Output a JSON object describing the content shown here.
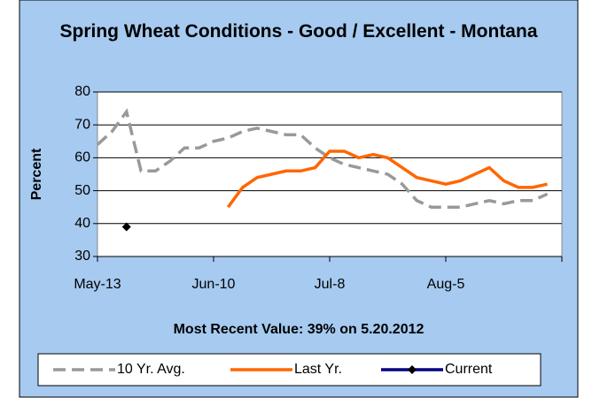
{
  "chart_data": {
    "type": "line",
    "title": "Spring Wheat Conditions - Good / Excellent - Montana",
    "y_label": "Percent",
    "annotation": "Most Recent Value: 39% on 5.20.2012",
    "categories": [
      "May-13",
      null,
      null,
      null,
      null,
      null,
      null,
      null,
      "Jun-10",
      null,
      null,
      null,
      null,
      null,
      null,
      null,
      "Jul-8",
      null,
      null,
      null,
      null,
      null,
      null,
      null,
      "Aug-5",
      null,
      null,
      null,
      null,
      null,
      null,
      null,
      null
    ],
    "series": [
      {
        "name": "10 Yr. Avg.",
        "color": "#999999",
        "dashed": true,
        "values": [
          64,
          68,
          74,
          56,
          56,
          59,
          63,
          63,
          65,
          66,
          68,
          69,
          68,
          67,
          67,
          63,
          60,
          58,
          57,
          56,
          55,
          52,
          47,
          45,
          45,
          45,
          46,
          47,
          46,
          47,
          47,
          49,
          null
        ]
      },
      {
        "name": "Last Yr.",
        "color": "#ff6600",
        "values": [
          null,
          null,
          null,
          null,
          null,
          null,
          null,
          null,
          null,
          45,
          51,
          54,
          55,
          56,
          56,
          57,
          62,
          62,
          60,
          61,
          60,
          57,
          54,
          53,
          52,
          53,
          55,
          57,
          53,
          51,
          51,
          52,
          null
        ]
      },
      {
        "name": "Current",
        "color": "#000080",
        "marker": "diamond",
        "values": [
          null,
          null,
          39,
          null,
          null,
          null,
          null,
          null,
          null,
          null,
          null,
          null,
          null,
          null,
          null,
          null,
          null,
          null,
          null,
          null,
          null,
          null,
          null,
          null,
          null,
          null,
          null,
          null,
          null,
          null,
          null,
          null,
          null
        ]
      }
    ],
    "ylim": [
      30,
      80
    ],
    "yticks": [
      30,
      40,
      50,
      60,
      70,
      80
    ],
    "grid": true,
    "legend": "bottom"
  }
}
